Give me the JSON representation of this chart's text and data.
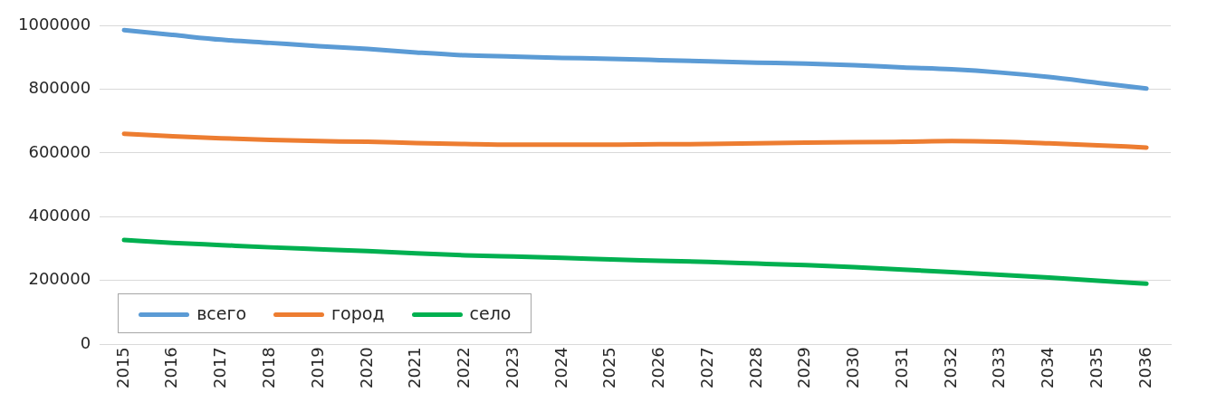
{
  "chart_data": {
    "type": "line",
    "categories": [
      "2015",
      "2016",
      "2017",
      "2018",
      "2019",
      "2020",
      "2021",
      "2022",
      "2023",
      "2024",
      "2025",
      "2026",
      "2027",
      "2028",
      "2029",
      "2030",
      "2031",
      "2032",
      "2033",
      "2034",
      "2035",
      "2036"
    ],
    "series": [
      {
        "name": "всего",
        "color": "#5b9bd5",
        "values": [
          985000,
          970000,
          955000,
          945000,
          935000,
          926000,
          915000,
          906000,
          902000,
          898000,
          895000,
          891000,
          887000,
          883000,
          880000,
          875000,
          868000,
          862000,
          852000,
          838000,
          820000,
          802000
        ]
      },
      {
        "name": "город",
        "color": "#ed7d31",
        "values": [
          660000,
          652000,
          646000,
          641000,
          637000,
          635000,
          631000,
          628000,
          626000,
          626000,
          626000,
          627000,
          628000,
          630000,
          632000,
          634000,
          635000,
          637000,
          635000,
          630000,
          624000,
          617000
        ]
      },
      {
        "name": "село",
        "color": "#00b050",
        "values": [
          327000,
          318000,
          311000,
          304000,
          298000,
          292000,
          285000,
          279000,
          275000,
          271000,
          266000,
          262000,
          258000,
          253000,
          248000,
          242000,
          234000,
          226000,
          218000,
          209000,
          199000,
          190000
        ]
      }
    ],
    "ylim": [
      0,
      1000000
    ],
    "yticks": [
      0,
      200000,
      400000,
      600000,
      800000,
      1000000
    ],
    "grid": "y",
    "legend": "bottom left",
    "marker": "none",
    "line_style": "solid"
  }
}
